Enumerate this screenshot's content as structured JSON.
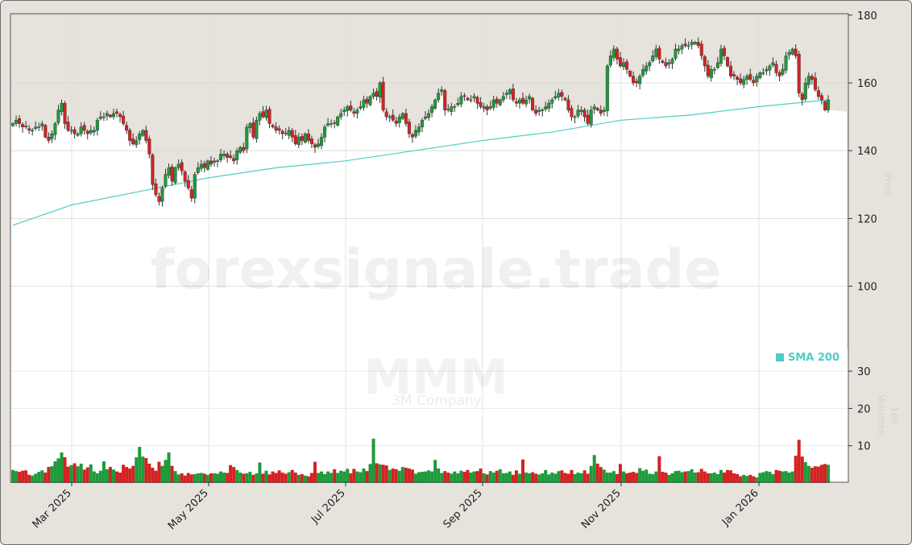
{
  "chart_data": {
    "type": "candlestick",
    "ticker": "MMM",
    "company": "3M Company",
    "watermark": "forexsignale.trade",
    "price_ylabel": "Preis",
    "volume_ylabel": "Volumen",
    "volume_unit": "1e6",
    "price_ylim": [
      82,
      180
    ],
    "price_ticks": [
      100,
      120,
      140,
      160,
      180
    ],
    "volume_ylim": [
      0,
      35
    ],
    "volume_ticks": [
      10,
      20,
      30
    ],
    "x_ticks": [
      "Mar 2025",
      "May 2025",
      "Jul 2025",
      "Sep 2025",
      "Nov 2025",
      "Jan 2026"
    ],
    "grid": true,
    "legend": {
      "label": "SMA 200",
      "placement": "right",
      "color": "#4ecdc4"
    },
    "colors": {
      "up": "#1e9a3c",
      "down": "#d42222",
      "sma": "#4ecdc4",
      "background": "#e6e3dd"
    },
    "closes": [
      148,
      149,
      148,
      147,
      147,
      146,
      146,
      147,
      147,
      148,
      144,
      143,
      145,
      148,
      152,
      154,
      148,
      146,
      146,
      145,
      145,
      147,
      146,
      145,
      146,
      146,
      149,
      150,
      150,
      151,
      150,
      151,
      151,
      150,
      148,
      146,
      143,
      142,
      143,
      145,
      146,
      143,
      139,
      130,
      127,
      125,
      129,
      133,
      135,
      131,
      135,
      136,
      134,
      131,
      129,
      126,
      133,
      135,
      136,
      135,
      137,
      136,
      137,
      137,
      139,
      139,
      138,
      138,
      137,
      140,
      141,
      140,
      147,
      148,
      144,
      149,
      151,
      150,
      152,
      148,
      147,
      146,
      146,
      145,
      145,
      146,
      144,
      142,
      144,
      143,
      145,
      143,
      142,
      141,
      142,
      144,
      147,
      148,
      148,
      148,
      150,
      151,
      152,
      153,
      152,
      151,
      152,
      153,
      155,
      154,
      156,
      157,
      156,
      160,
      152,
      150,
      150,
      149,
      148,
      150,
      151,
      148,
      145,
      144,
      146,
      147,
      149,
      150,
      151,
      153,
      155,
      157,
      158,
      152,
      152,
      153,
      153,
      154,
      156,
      156,
      155,
      155,
      156,
      154,
      153,
      153,
      152,
      153,
      155,
      154,
      155,
      156,
      157,
      158,
      155,
      154,
      155,
      154,
      155,
      156,
      152,
      151,
      152,
      152,
      153,
      154,
      155,
      156,
      157,
      156,
      155,
      152,
      150,
      150,
      152,
      152,
      150,
      148,
      152,
      153,
      152,
      151,
      152,
      165,
      168,
      170,
      167,
      165,
      166,
      164,
      162,
      160,
      160,
      162,
      164,
      165,
      166,
      168,
      170,
      167,
      166,
      165,
      166,
      167,
      170,
      170,
      171,
      171,
      171,
      172,
      172,
      171,
      168,
      165,
      162,
      164,
      164,
      166,
      170,
      168,
      165,
      162,
      162,
      161,
      160,
      161,
      162,
      161,
      160,
      162,
      163,
      163,
      164,
      165,
      166,
      163,
      162,
      164,
      168,
      169,
      170,
      168,
      157,
      155,
      160,
      162,
      161,
      158,
      156,
      155,
      152,
      155
    ],
    "volumes": [
      3.5,
      3.2,
      3,
      3.3,
      3.4,
      2.2,
      2,
      2.5,
      3,
      3.4,
      2.8,
      4.3,
      4.5,
      5.8,
      6.6,
      8.2,
      6.9,
      4.4,
      4.8,
      5.3,
      4.5,
      5.2,
      3.6,
      4.2,
      5,
      3.1,
      2.6,
      3.3,
      5.8,
      3.7,
      4.3,
      3.6,
      3.1,
      2.8,
      4.9,
      4.3,
      3.9,
      4.6,
      6.9,
      9.7,
      7.1,
      6.7,
      5.2,
      4.1,
      3.3,
      5.7,
      4.6,
      6.2,
      8.2,
      4.6,
      3.2,
      2.3,
      2.6,
      2,
      2.7,
      2.3,
      2.4,
      2.6,
      2.7,
      2.5,
      2.2,
      2.6,
      2.6,
      2.5,
      3.1,
      2.8,
      2.7,
      4.8,
      4.3,
      3.5,
      2.8,
      2.5,
      2.6,
      3,
      2.2,
      2.6,
      5.5,
      2.5,
      3.3,
      2.3,
      3.1,
      2.7,
      3.4,
      2.8,
      2.5,
      2.9,
      3.5,
      2.8,
      2.2,
      2.4,
      2,
      1.8,
      2.7,
      5.7,
      2.7,
      3.1,
      2.4,
      3.1,
      2.7,
      3.7,
      2.7,
      3.3,
      3.1,
      3.8,
      2.6,
      3.8,
      3.1,
      2.9,
      3.9,
      3.2,
      5.1,
      11.9,
      5.3,
      5,
      4.9,
      4.7,
      3.5,
      3.9,
      3.7,
      3.3,
      4.3,
      4.1,
      3.9,
      3.6,
      2.5,
      2.9,
      3,
      3.1,
      3.4,
      3.1,
      6.2,
      3.9,
      2.7,
      3.2,
      2.8,
      2.5,
      3.1,
      2.6,
      3.3,
      3,
      3.5,
      2.8,
      3.1,
      3.2,
      3.9,
      2.6,
      2.3,
      3.2,
      2.8,
      3.3,
      3.7,
      2.6,
      2.7,
      3.1,
      2.2,
      3.4,
      2.5,
      6.3,
      2.8,
      2.6,
      2.9,
      2.5,
      2.3,
      2.6,
      3.5,
      2.3,
      2.8,
      2.5,
      3.2,
      3.4,
      2.7,
      2.5,
      3.5,
      2.4,
      2.8,
      2.6,
      3.4,
      2.5,
      4.6,
      7.5,
      5.2,
      4.3,
      3.6,
      2.8,
      2.8,
      3.2,
      2.4,
      5.1,
      3.1,
      2.6,
      2.8,
      3,
      2.7,
      4,
      3.3,
      3.6,
      2.5,
      2.4,
      3.1,
      7.2,
      3,
      2.8,
      2.2,
      2.6,
      3.2,
      3.3,
      2.9,
      3.1,
      3.2,
      3.7,
      2.8,
      2.9,
      3.8,
      3.1,
      2.6,
      2.6,
      2.8,
      2.4,
      3.5,
      2.8,
      3.5,
      3.4,
      2.6,
      2.4,
      1.8,
      2.2,
      1.9,
      2.2,
      1.8,
      1.5,
      2.7,
      2.9,
      3.2,
      3,
      2.4,
      3.5,
      3.3,
      3.1,
      3.2,
      2.8,
      3.1,
      7.3,
      11.6,
      7.1,
      5.6,
      4.6,
      4.1,
      4.5,
      4.4,
      4.9,
      5.1,
      4.9
    ],
    "sma_200": [
      [
        "Feb 2025",
        118
      ],
      [
        "Mar 2025",
        124
      ],
      [
        "Apr 2025",
        128
      ],
      [
        "May 2025",
        132
      ],
      [
        "Jun 2025",
        135
      ],
      [
        "Jul 2025",
        137
      ],
      [
        "Aug 2025",
        140
      ],
      [
        "Sep 2025",
        143
      ],
      [
        "Oct 2025",
        145.5
      ],
      [
        "Nov 2025",
        149
      ],
      [
        "Dec 2025",
        150.5
      ],
      [
        "Jan 2026",
        153
      ],
      [
        "Feb 2026",
        155
      ]
    ]
  }
}
